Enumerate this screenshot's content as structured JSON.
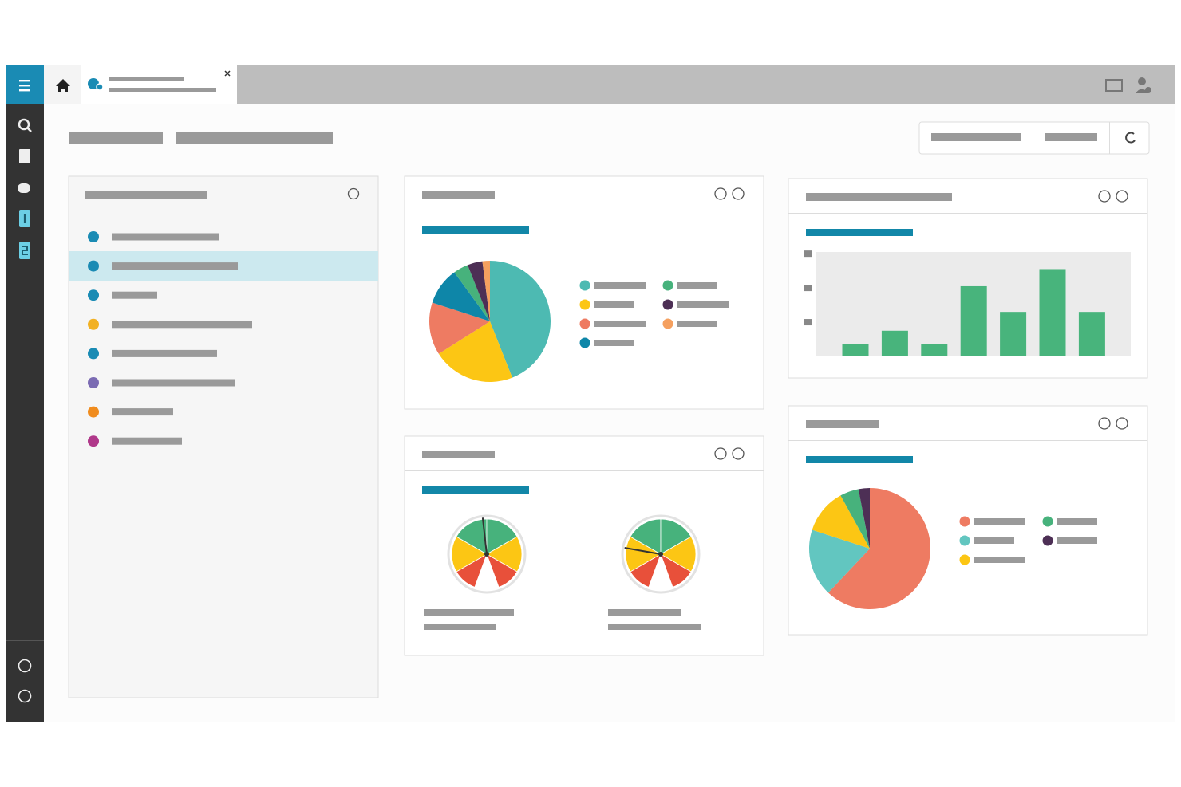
{
  "chart_data": [
    {
      "type": "pie",
      "values": [
        44,
        22,
        14,
        10,
        4,
        4,
        2
      ],
      "colors": [
        "#4dbab2",
        "#fcc614",
        "#ee7b62",
        "#0e86a8",
        "#47b27c",
        "#4d2f55",
        "#f5a05f"
      ]
    },
    {
      "type": "gauge",
      "values": [
        48,
        25
      ],
      "ylim": [
        0,
        100
      ]
    },
    {
      "type": "bar",
      "values": [
        0.35,
        0.75,
        0.35,
        2.05,
        1.3,
        2.55,
        1.3
      ],
      "color": "#48b47c",
      "ylim": [
        0,
        3.05
      ],
      "yticks": [
        1,
        2,
        3
      ]
    },
    {
      "type": "pie",
      "values": [
        62,
        18,
        12,
        5,
        3
      ],
      "colors": [
        "#ee7b62",
        "#62c6c0",
        "#fcc614",
        "#47b27c",
        "#4d2f55"
      ]
    }
  ]
}
